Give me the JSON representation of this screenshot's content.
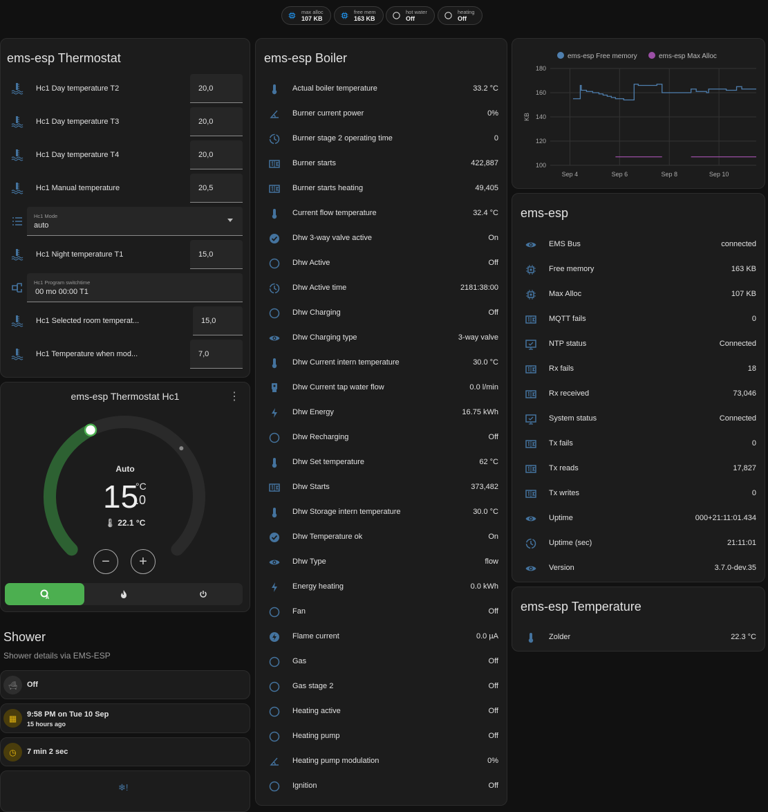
{
  "colors": {
    "icon": "#44739e",
    "accent_green": "#4caf50",
    "arc_green": "#2d6132",
    "free_memory": "#4f7fae",
    "max_alloc": "#9b4fa5",
    "amber": "#e3b40f"
  },
  "badges": [
    {
      "icon": "chip-icon",
      "label": "max alloc",
      "value": "107 KB"
    },
    {
      "icon": "chip-icon",
      "label": "free mem",
      "value": "163 KB"
    },
    {
      "icon": "circle-outline-icon",
      "label": "hot water",
      "value": "Off"
    },
    {
      "icon": "circle-outline-icon",
      "label": "heating",
      "value": "Off"
    }
  ],
  "thermostat": {
    "title": "ems-esp Thermostat",
    "rows": [
      {
        "type": "number",
        "icon": "water-thermometer",
        "label": "Hc1 Day temperature T2",
        "value": "20,0"
      },
      {
        "type": "number",
        "icon": "water-thermometer",
        "label": "Hc1 Day temperature T3",
        "value": "20,0"
      },
      {
        "type": "number",
        "icon": "water-thermometer",
        "label": "Hc1 Day temperature T4",
        "value": "20,0"
      },
      {
        "type": "number",
        "icon": "water-thermometer",
        "label": "Hc1 Manual temperature",
        "value": "20,5"
      },
      {
        "type": "select",
        "icon": "list",
        "label": "Hc1 Mode",
        "value": "auto"
      },
      {
        "type": "number",
        "icon": "water-thermometer",
        "label": "Hc1 Night temperature T1",
        "value": "15,0"
      },
      {
        "type": "text",
        "icon": "switch",
        "label": "Hc1 Program switchtime",
        "value": "00 mo 00:00 T1"
      },
      {
        "type": "number",
        "icon": "water-thermometer",
        "label": "Hc1 Selected room temperat...",
        "value": "15,0"
      },
      {
        "type": "number",
        "icon": "water-thermometer",
        "label": "Hc1 Temperature when mod...",
        "value": "7,0"
      }
    ]
  },
  "climate": {
    "title": "ems-esp Thermostat Hc1",
    "mode": "Auto",
    "target_int": "15",
    "target_dec": ".0",
    "unit": "°C",
    "current": "22.1 °C",
    "target": 15.0,
    "current_value": 22.1,
    "dial_range": [
      5,
      30
    ],
    "modes": [
      {
        "icon": "thermostat-auto-icon",
        "active": true
      },
      {
        "icon": "fire-icon",
        "active": false
      },
      {
        "icon": "power-icon",
        "active": false
      }
    ]
  },
  "shower": {
    "title": "Shower",
    "subtitle": "Shower details via EMS-ESP",
    "items": [
      {
        "icon": "bathtub-icon",
        "primary": "Off",
        "secondary": ""
      },
      {
        "icon": "calendar-icon",
        "primary": "9:58 PM on Tue 10 Sep",
        "secondary": "15 hours ago"
      },
      {
        "icon": "timer-icon",
        "primary": "7 min 2 sec",
        "secondary": ""
      }
    ],
    "bottom_icon": "snowflake-alert-icon"
  },
  "boiler": {
    "title": "ems-esp Boiler",
    "rows": [
      {
        "icon": "thermometer",
        "label": "Actual boiler temperature",
        "value": "33.2 °C"
      },
      {
        "icon": "angle",
        "label": "Burner current power",
        "value": "0%"
      },
      {
        "icon": "clock-dash",
        "label": "Burner stage 2 operating time",
        "value": "0"
      },
      {
        "icon": "counter",
        "label": "Burner starts",
        "value": "422,887"
      },
      {
        "icon": "counter",
        "label": "Burner starts heating",
        "value": "49,405"
      },
      {
        "icon": "thermometer",
        "label": "Current flow temperature",
        "value": "32.4 °C"
      },
      {
        "icon": "check-circle",
        "label": "Dhw 3-way valve active",
        "value": "On"
      },
      {
        "icon": "circle-outline",
        "label": "Dhw Active",
        "value": "Off"
      },
      {
        "icon": "clock-dash",
        "label": "Dhw Active time",
        "value": "2181:38:00"
      },
      {
        "icon": "circle-outline",
        "label": "Dhw Charging",
        "value": "Off"
      },
      {
        "icon": "eye",
        "label": "Dhw Charging type",
        "value": "3-way valve"
      },
      {
        "icon": "thermometer",
        "label": "Dhw Current intern temperature",
        "value": "30.0 °C"
      },
      {
        "icon": "water-pump",
        "label": "Dhw Current tap water flow",
        "value": "0.0 l/min"
      },
      {
        "icon": "flash",
        "label": "Dhw Energy",
        "value": "16.75 kWh"
      },
      {
        "icon": "circle-outline",
        "label": "Dhw Recharging",
        "value": "Off"
      },
      {
        "icon": "thermometer",
        "label": "Dhw Set temperature",
        "value": "62 °C"
      },
      {
        "icon": "counter",
        "label": "Dhw Starts",
        "value": "373,482"
      },
      {
        "icon": "thermometer",
        "label": "Dhw Storage intern temperature",
        "value": "30.0 °C"
      },
      {
        "icon": "check-circle",
        "label": "Dhw Temperature ok",
        "value": "On"
      },
      {
        "icon": "eye",
        "label": "Dhw Type",
        "value": "flow"
      },
      {
        "icon": "flash",
        "label": "Energy heating",
        "value": "0.0 kWh"
      },
      {
        "icon": "circle-outline",
        "label": "Fan",
        "value": "Off"
      },
      {
        "icon": "flash-circle",
        "label": "Flame current",
        "value": "0.0 µA"
      },
      {
        "icon": "circle-outline",
        "label": "Gas",
        "value": "Off"
      },
      {
        "icon": "circle-outline",
        "label": "Gas stage 2",
        "value": "Off"
      },
      {
        "icon": "circle-outline",
        "label": "Heating active",
        "value": "Off"
      },
      {
        "icon": "circle-outline",
        "label": "Heating pump",
        "value": "Off"
      },
      {
        "icon": "angle",
        "label": "Heating pump modulation",
        "value": "0%"
      },
      {
        "icon": "circle-outline",
        "label": "Ignition",
        "value": "Off"
      }
    ]
  },
  "chart_data": {
    "type": "line",
    "ylabel": "KB",
    "ylim": [
      100,
      180
    ],
    "yticks": [
      100,
      120,
      140,
      160,
      180
    ],
    "xticks": [
      "Sep 4",
      "Sep 6",
      "Sep 8",
      "Sep 10"
    ],
    "xlim": [
      "Sep 3 05:00",
      "Sep 11 12:00"
    ],
    "grid": true,
    "legend": "top",
    "series": [
      {
        "name": "ems-esp Free memory",
        "color": "#4f7fae",
        "points": [
          [
            "Sep 4 03:00",
            155
          ],
          [
            "Sep 4 10:00",
            155
          ],
          [
            "Sep 4 10:00",
            166
          ],
          [
            "Sep 4 11:00",
            162
          ],
          [
            "Sep 4 16:00",
            161
          ],
          [
            "Sep 4 22:00",
            160
          ],
          [
            "Sep 5 04:00",
            159
          ],
          [
            "Sep 5 08:00",
            158
          ],
          [
            "Sep 5 12:00",
            157
          ],
          [
            "Sep 5 16:00",
            156
          ],
          [
            "Sep 5 20:00",
            155
          ],
          [
            "Sep 6 04:00",
            154
          ],
          [
            "Sep 6 14:00",
            155
          ],
          [
            "Sep 6 14:00",
            167
          ],
          [
            "Sep 6 18:00",
            166
          ],
          [
            "Sep 7 10:00",
            166
          ],
          [
            "Sep 7 12:00",
            167
          ],
          [
            "Sep 7 17:00",
            167
          ],
          [
            "Sep 7 17:00",
            160
          ],
          [
            "Sep 8 21:00",
            163
          ],
          [
            "Sep 9 02:00",
            161
          ],
          [
            "Sep 9 12:00",
            160
          ],
          [
            "Sep 9 14:00",
            163
          ],
          [
            "Sep 10 06:00",
            163
          ],
          [
            "Sep 10 07:00",
            162
          ],
          [
            "Sep 10 17:00",
            162
          ],
          [
            "Sep 10 17:00",
            165
          ],
          [
            "Sep 10 22:00",
            163
          ],
          [
            "Sep 11 12:00",
            163
          ]
        ]
      },
      {
        "name": "ems-esp Max Alloc",
        "color": "#9b4fa5",
        "points": [
          [
            "Sep 5 20:00",
            107
          ],
          [
            "Sep 7 17:00",
            107
          ],
          null,
          [
            "Sep 8 21:00",
            107
          ],
          [
            "Sep 11 12:00",
            107
          ]
        ]
      }
    ]
  },
  "esp": {
    "title": "ems-esp",
    "rows": [
      {
        "icon": "eye",
        "label": "EMS Bus",
        "value": "connected"
      },
      {
        "icon": "chip",
        "label": "Free memory",
        "value": "163 KB"
      },
      {
        "icon": "chip",
        "label": "Max Alloc",
        "value": "107 KB"
      },
      {
        "icon": "counter",
        "label": "MQTT fails",
        "value": "0"
      },
      {
        "icon": "monitor-check",
        "label": "NTP status",
        "value": "Connected"
      },
      {
        "icon": "counter",
        "label": "Rx fails",
        "value": "18"
      },
      {
        "icon": "counter",
        "label": "Rx received",
        "value": "73,046"
      },
      {
        "icon": "monitor-check",
        "label": "System status",
        "value": "Connected"
      },
      {
        "icon": "counter",
        "label": "Tx fails",
        "value": "0"
      },
      {
        "icon": "counter",
        "label": "Tx reads",
        "value": "17,827"
      },
      {
        "icon": "counter",
        "label": "Tx writes",
        "value": "0"
      },
      {
        "icon": "eye",
        "label": "Uptime",
        "value": "000+21:11:01.434"
      },
      {
        "icon": "clock-dash",
        "label": "Uptime (sec)",
        "value": "21:11:01"
      },
      {
        "icon": "eye",
        "label": "Version",
        "value": "3.7.0-dev.35"
      }
    ]
  },
  "temperature": {
    "title": "ems-esp Temperature",
    "rows": [
      {
        "icon": "thermometer",
        "label": "Zolder",
        "value": "22.3 °C"
      }
    ]
  }
}
